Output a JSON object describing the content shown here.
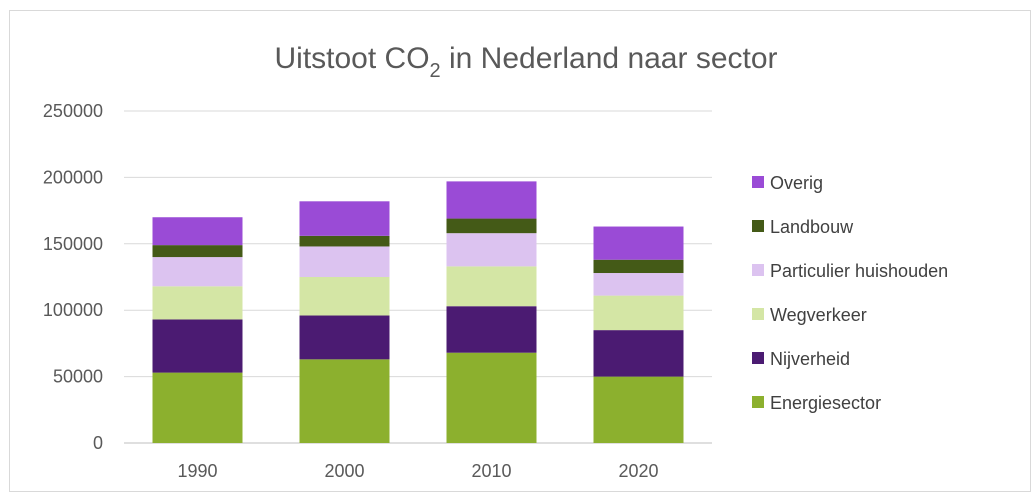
{
  "chart_data": {
    "type": "bar",
    "stacked": true,
    "title": "Uitstoot CO",
    "title_subscript": "2",
    "title_suffix": " in Nederland naar sector",
    "categories": [
      "1990",
      "2000",
      "2010",
      "2020"
    ],
    "ylim": [
      0,
      250000
    ],
    "yticks": [
      0,
      50000,
      100000,
      150000,
      200000,
      250000
    ],
    "grid": true,
    "legend_position": "right",
    "series": [
      {
        "name": "Energiesector",
        "color": "#8cb02e",
        "values": [
          53000,
          63000,
          68000,
          50000
        ]
      },
      {
        "name": "Nijverheid",
        "color": "#4b1b72",
        "values": [
          40000,
          33000,
          35000,
          35000
        ]
      },
      {
        "name": "Wegverkeer",
        "color": "#d4e6a5",
        "values": [
          25000,
          29000,
          30000,
          26000
        ]
      },
      {
        "name": "Particulier huishouden",
        "color": "#dcc3f0",
        "values": [
          22000,
          23000,
          25000,
          17000
        ]
      },
      {
        "name": "Landbouw",
        "color": "#445a17",
        "values": [
          9000,
          8000,
          11000,
          10000
        ]
      },
      {
        "name": "Overig",
        "color": "#9a4bd6",
        "values": [
          21000,
          26000,
          28000,
          25000
        ]
      }
    ]
  }
}
